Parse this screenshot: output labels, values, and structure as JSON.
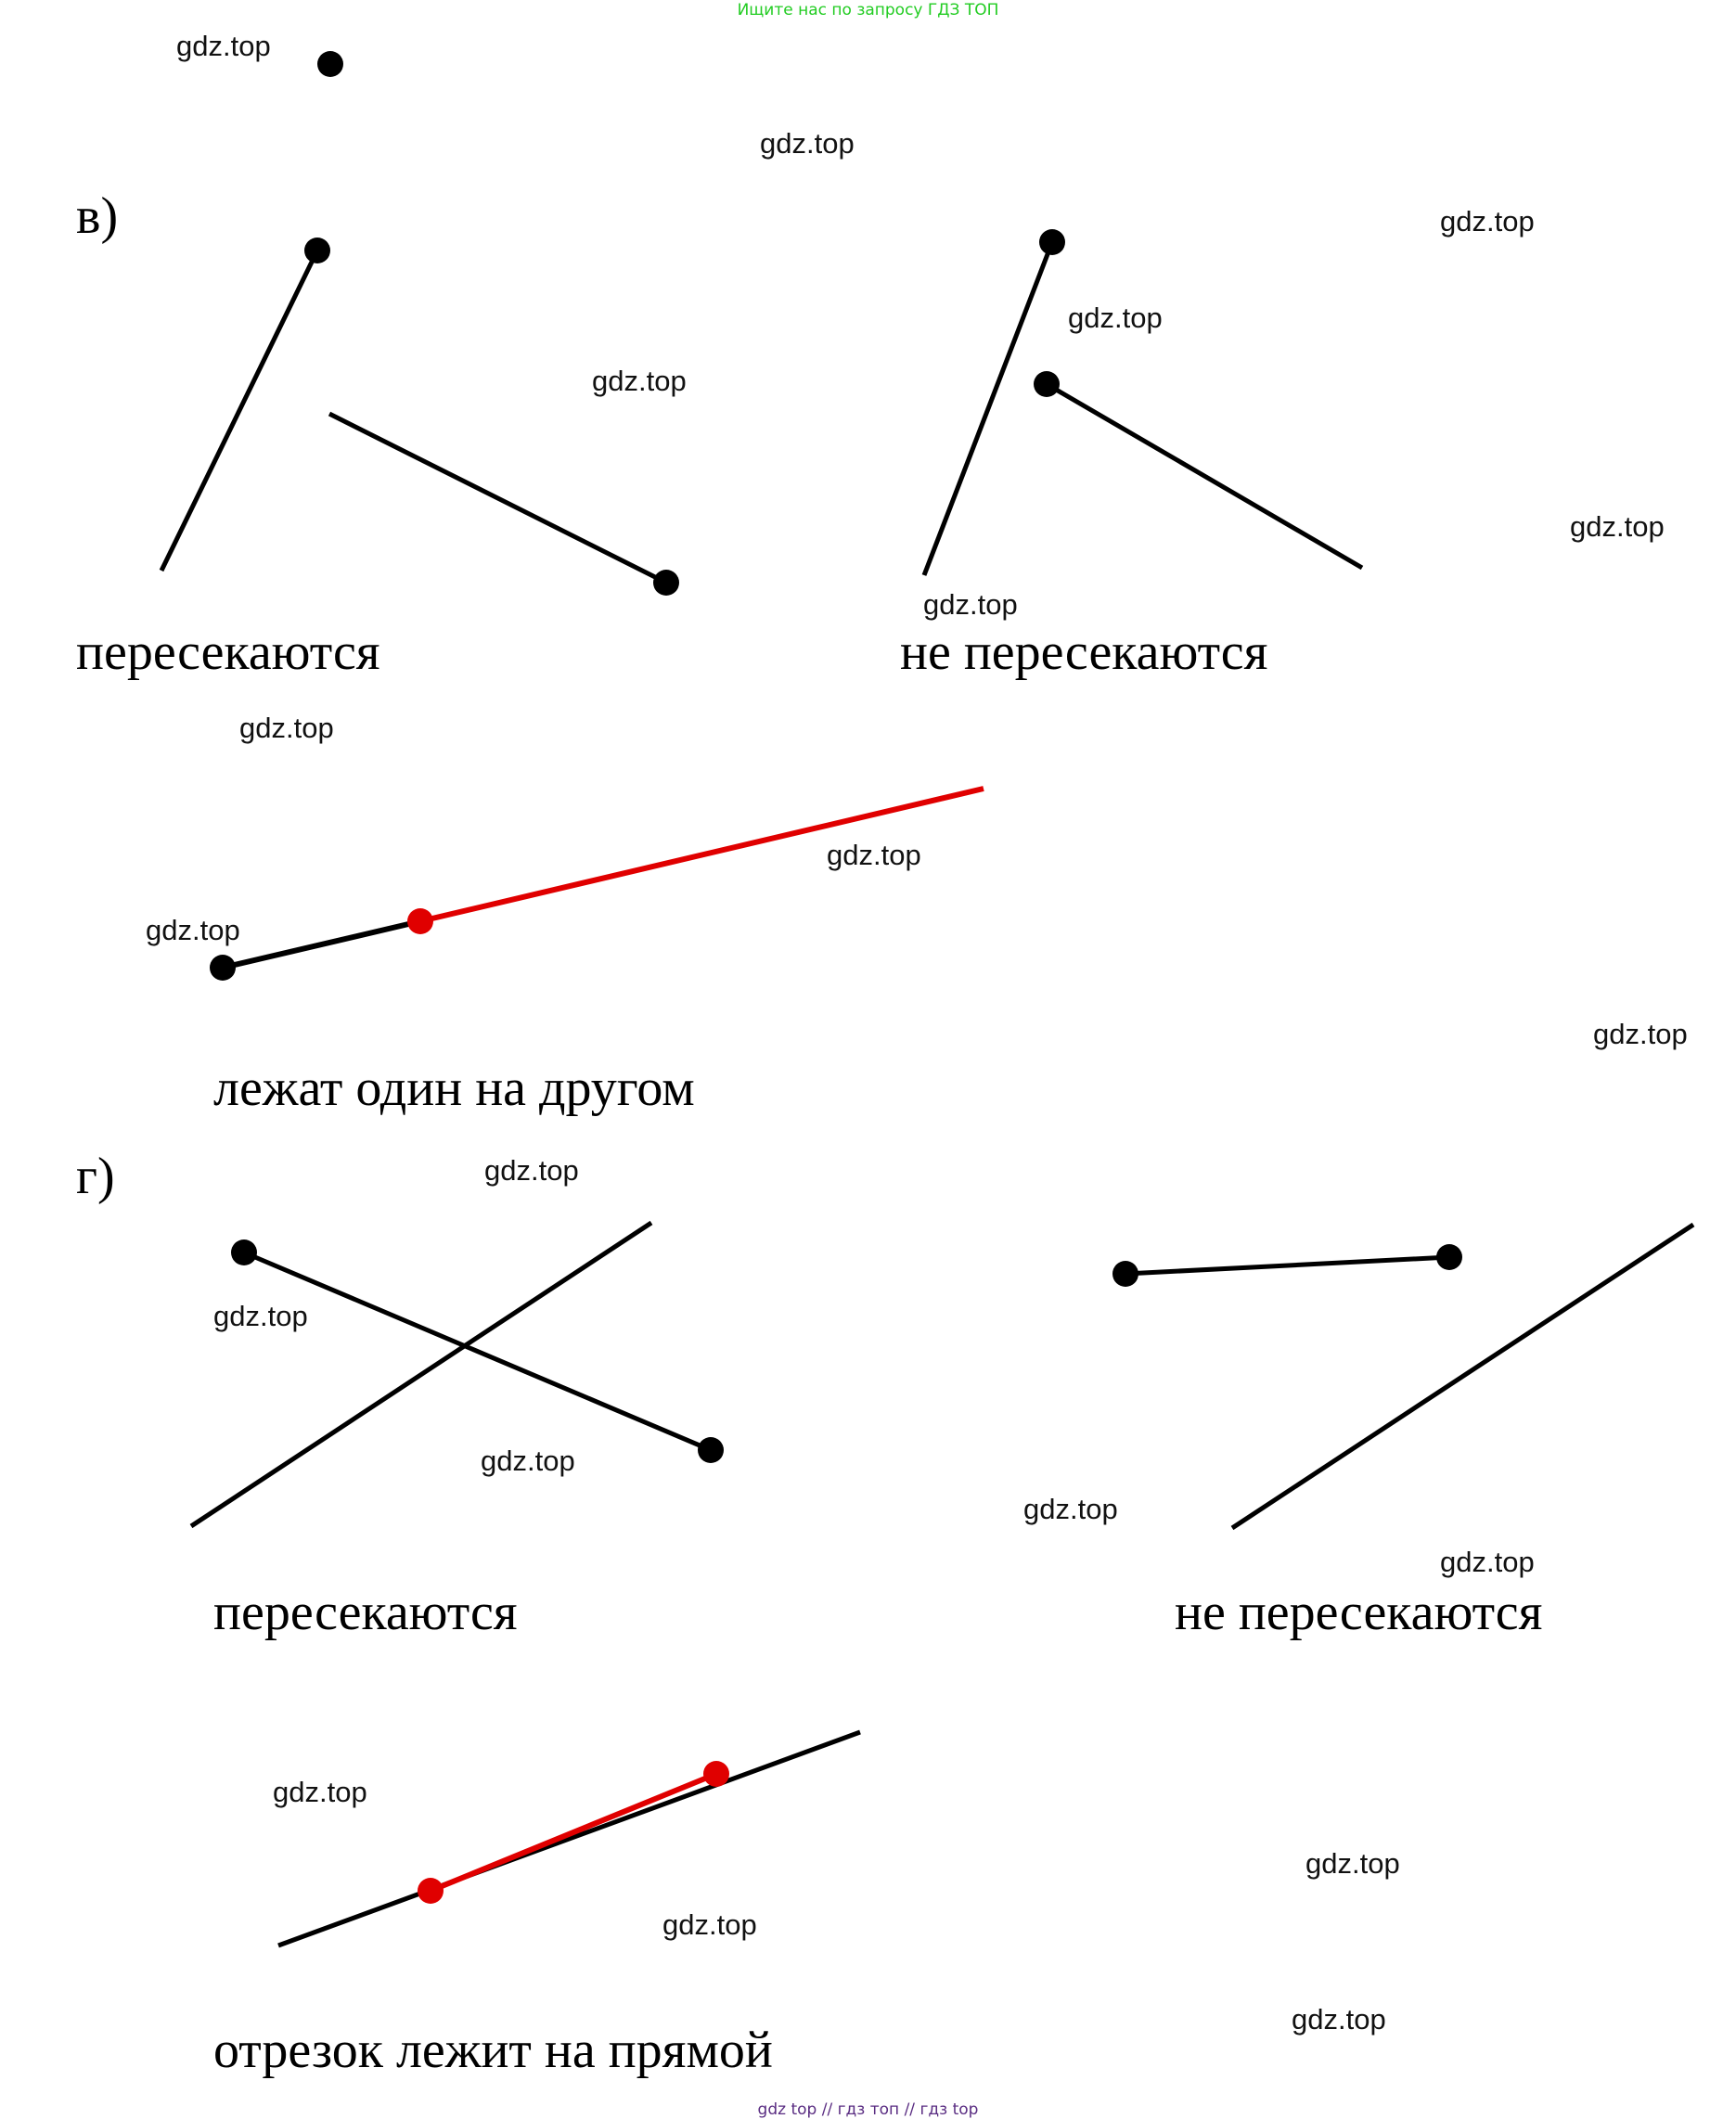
{
  "header": {
    "text": "Ищите нас по запросу ГДЗ ТОП"
  },
  "sections": {
    "v": {
      "label": "в)",
      "captions": {
        "intersect": "пересекаются",
        "not_intersect": "не пересекаются",
        "overlap": "лежат один на другом"
      }
    },
    "g": {
      "label": "г)",
      "captions": {
        "intersect": "пересекаются",
        "not_intersect": "не пересекаются",
        "on_line": "отрезок лежит на прямой"
      }
    }
  },
  "watermark": "gdz.top",
  "footer": {
    "links": [
      "gdz top",
      "гдз топ",
      "гдз top"
    ],
    "separator": "//"
  },
  "colors": {
    "line": "#000000",
    "highlight": "#e00000",
    "header": "#22cc22",
    "footer": "#5a2d82"
  }
}
